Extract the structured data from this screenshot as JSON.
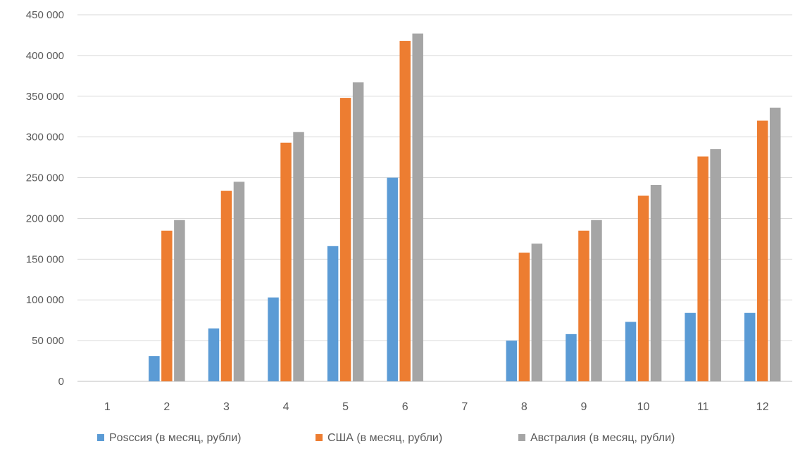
{
  "chart_data": {
    "type": "bar",
    "title": "",
    "xlabel": "",
    "ylabel": "",
    "ylim": [
      0,
      450000
    ],
    "yticks": [
      0,
      50000,
      100000,
      150000,
      200000,
      250000,
      300000,
      350000,
      400000,
      450000
    ],
    "ytick_labels": [
      "0",
      "50 000",
      "100 000",
      "150 000",
      "200 000",
      "250 000",
      "300 000",
      "350 000",
      "400 000",
      "450 000"
    ],
    "grid": true,
    "legend_position": "bottom",
    "categories": [
      "1",
      "2",
      "3",
      "4",
      "5",
      "6",
      "7",
      "8",
      "9",
      "10",
      "11",
      "12"
    ],
    "series": [
      {
        "name": "Рosссия (в месяц, рубли)",
        "color": "#5B9BD5",
        "values": [
          0,
          31000,
          65000,
          103000,
          166000,
          250000,
          0,
          50000,
          58000,
          73000,
          84000,
          84000
        ]
      },
      {
        "name": "США (в месяц, рубли)",
        "color": "#ED7D31",
        "values": [
          0,
          185000,
          234000,
          293000,
          348000,
          418000,
          0,
          158000,
          185000,
          228000,
          276000,
          320000
        ]
      },
      {
        "name": "Австралия (в месяц, рубли)",
        "color": "#A5A5A5",
        "values": [
          0,
          198000,
          245000,
          306000,
          367000,
          427000,
          0,
          169000,
          198000,
          241000,
          285000,
          336000
        ]
      }
    ]
  }
}
